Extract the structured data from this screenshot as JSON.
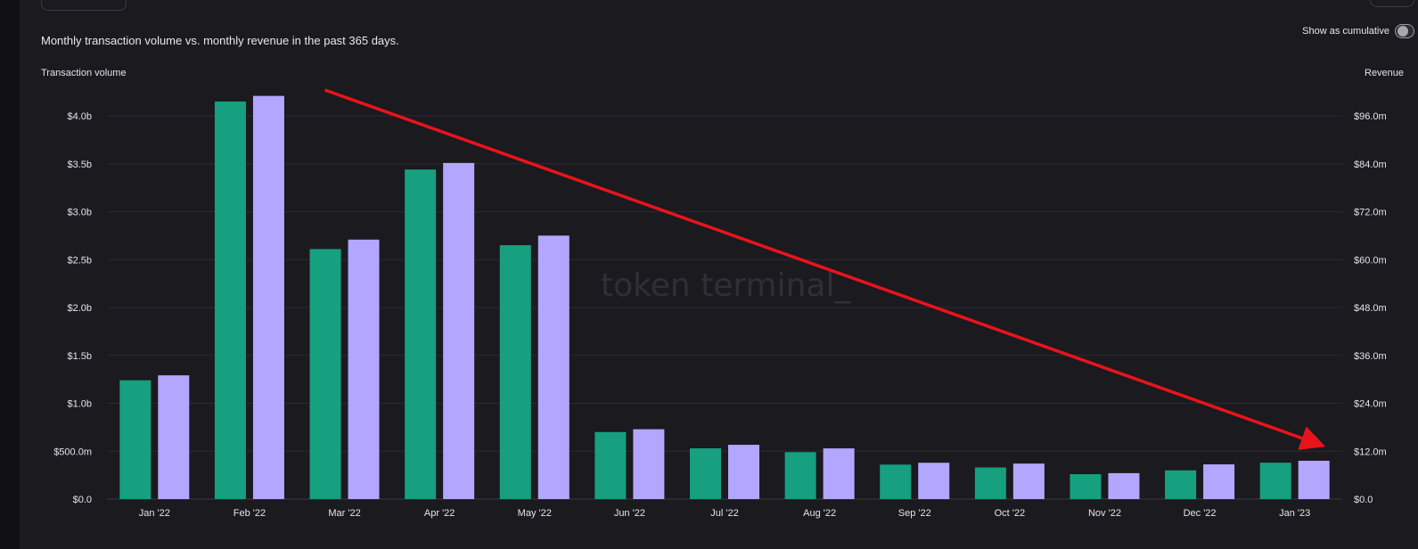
{
  "header": {
    "title": "Monthly transaction volume vs. monthly revenue in the past 365 days.",
    "cumulative_toggle_label": "Show as cumulative",
    "cumulative_toggle_on": false
  },
  "chart_data": {
    "type": "bar",
    "categories": [
      "Jan '22",
      "Feb '22",
      "Mar '22",
      "Apr '22",
      "May '22",
      "Jun '22",
      "Jul '22",
      "Aug '22",
      "Sep '22",
      "Oct '22",
      "Nov '22",
      "Dec '22",
      "Jan '23"
    ],
    "series": [
      {
        "axis": "left",
        "color": "#16a07f",
        "values": [
          1.24,
          4.15,
          2.61,
          3.44,
          2.65,
          0.7,
          0.53,
          0.49,
          0.36,
          0.33,
          0.26,
          0.3,
          0.38
        ]
      },
      {
        "axis": "right",
        "color": "#b3a6ff",
        "values": [
          31.0,
          101.0,
          65.0,
          84.2,
          66.0,
          17.5,
          13.6,
          12.7,
          9.1,
          8.9,
          6.5,
          8.7,
          9.6
        ]
      }
    ],
    "y_left": {
      "label": "Transaction volume",
      "ticks": [
        0,
        0.5,
        1.0,
        1.5,
        2.0,
        2.5,
        3.0,
        3.5,
        4.0
      ],
      "tick_labels": [
        "$0.0",
        "$500.0m",
        "$1.0b",
        "$1.5b",
        "$2.0b",
        "$2.5b",
        "$3.0b",
        "$3.5b",
        "$4.0b"
      ],
      "unit": "billions USD",
      "range": [
        0,
        4.0
      ]
    },
    "y_right": {
      "label": "Revenue",
      "ticks": [
        0,
        12,
        24,
        36,
        48,
        60,
        72,
        84,
        96
      ],
      "tick_labels": [
        "$0.0",
        "$12.0m",
        "$24.0m",
        "$36.0m",
        "$48.0m",
        "$60.0m",
        "$72.0m",
        "$84.0m",
        "$96.0m"
      ],
      "unit": "millions USD",
      "range": [
        0,
        96
      ]
    },
    "gridlines": true,
    "watermark": "token terminal_",
    "annotation": {
      "type": "arrow",
      "color": "#e8141a",
      "from_category": "Mar '22",
      "from_value_left": 4.27,
      "to_category": "Jan '23",
      "to_value_left": 0.57
    }
  }
}
